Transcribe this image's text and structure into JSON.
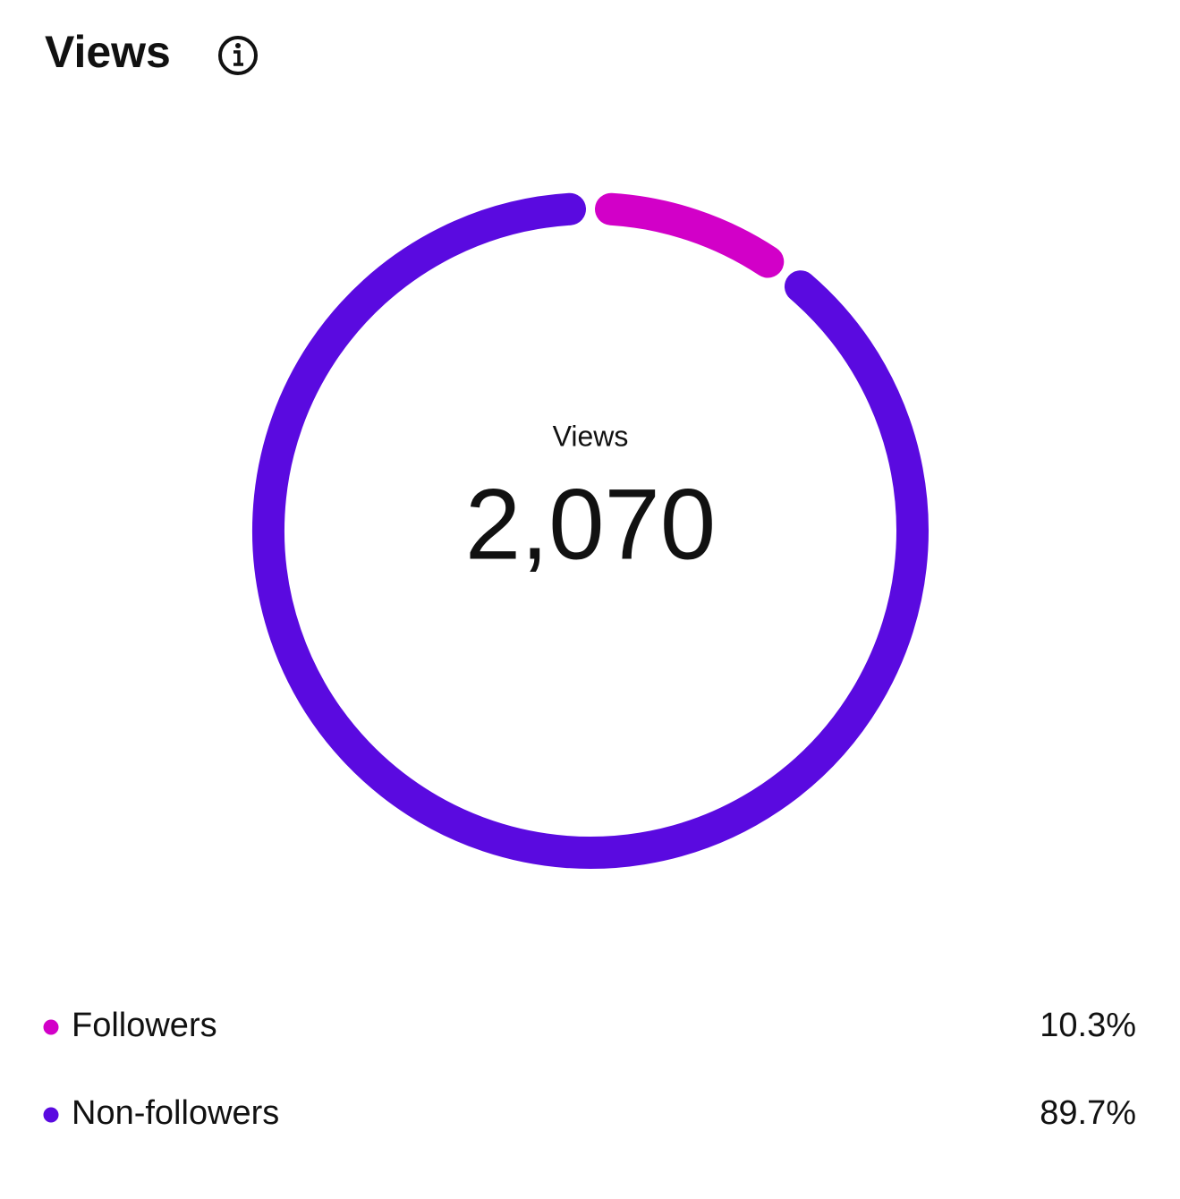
{
  "chart_data": {
    "type": "pie",
    "donut": true,
    "title": "Views",
    "center_label": "Views",
    "total": {
      "value": 2070,
      "label": "2,070"
    },
    "categories": [
      "Followers",
      "Non-followers"
    ],
    "values": [
      10.3,
      89.7
    ],
    "value_labels": [
      "10.3%",
      "89.7%"
    ],
    "colors": [
      "#d200c8",
      "#5a0ae0"
    ]
  }
}
